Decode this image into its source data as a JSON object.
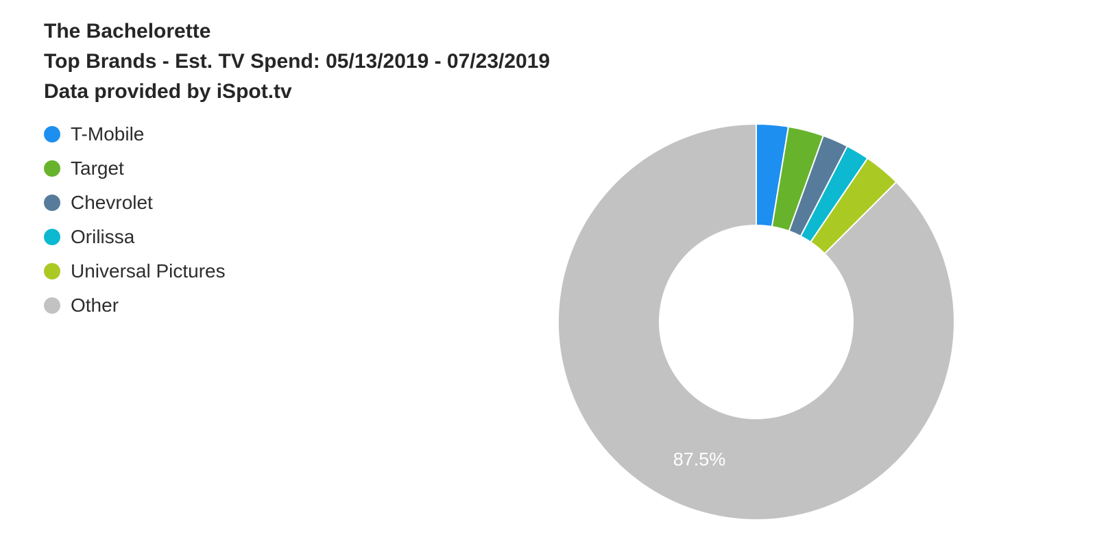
{
  "header": {
    "line1": "The Bachelorette",
    "line2": "Top Brands - Est. TV Spend: 05/13/2019 - 07/23/2019",
    "line3": "Data provided by iSpot.tv"
  },
  "chart_data": {
    "type": "pie",
    "donut": true,
    "title": "The Bachelorette",
    "subtitle": "Top Brands - Est. TV Spend: 05/13/2019 - 07/23/2019",
    "source": "Data provided by iSpot.tv",
    "legend_position": "left",
    "labels": [
      "T-Mobile",
      "Target",
      "Chevrolet",
      "Orilissa",
      "Universal Pictures",
      "Other"
    ],
    "values": [
      2.6,
      2.9,
      2.1,
      1.9,
      3.0,
      87.5
    ],
    "colors": [
      "#1d8ff0",
      "#68b32c",
      "#577c9b",
      "#0cb9d1",
      "#abc923",
      "#c2c2c2"
    ],
    "slice_labels": [
      "",
      "",
      "",
      "",
      "",
      "87.5%"
    ],
    "unit": "percent"
  }
}
